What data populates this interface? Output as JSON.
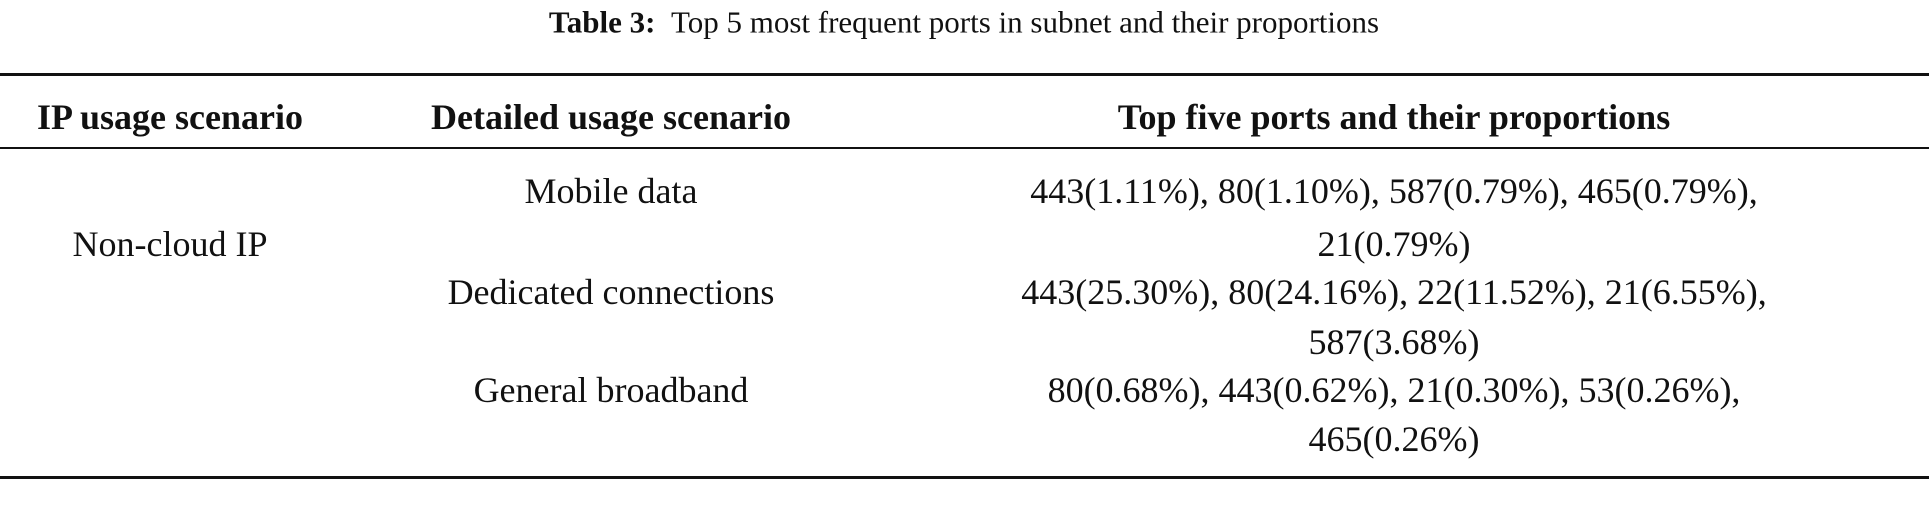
{
  "caption": {
    "label": "Table 3:",
    "text": "Top 5 most frequent ports in subnet and their proportions"
  },
  "table": {
    "headers": [
      "IP usage scenario",
      "Detailed usage scenario",
      "Top five ports and their proportions"
    ],
    "group": "Non-cloud IP",
    "rows": [
      {
        "scenario": "Mobile data",
        "ports_line1": "443(1.11%), 80(1.10%), 587(0.79%), 465(0.79%),",
        "ports_line2": "21(0.79%)"
      },
      {
        "scenario": "Dedicated connections",
        "ports_line1": "443(25.30%), 80(24.16%), 22(11.52%), 21(6.55%),",
        "ports_line2": "587(3.68%)"
      },
      {
        "scenario": "General broadband",
        "ports_line1": "80(0.68%), 443(0.62%), 21(0.30%), 53(0.26%),",
        "ports_line2": "465(0.26%)"
      }
    ]
  }
}
